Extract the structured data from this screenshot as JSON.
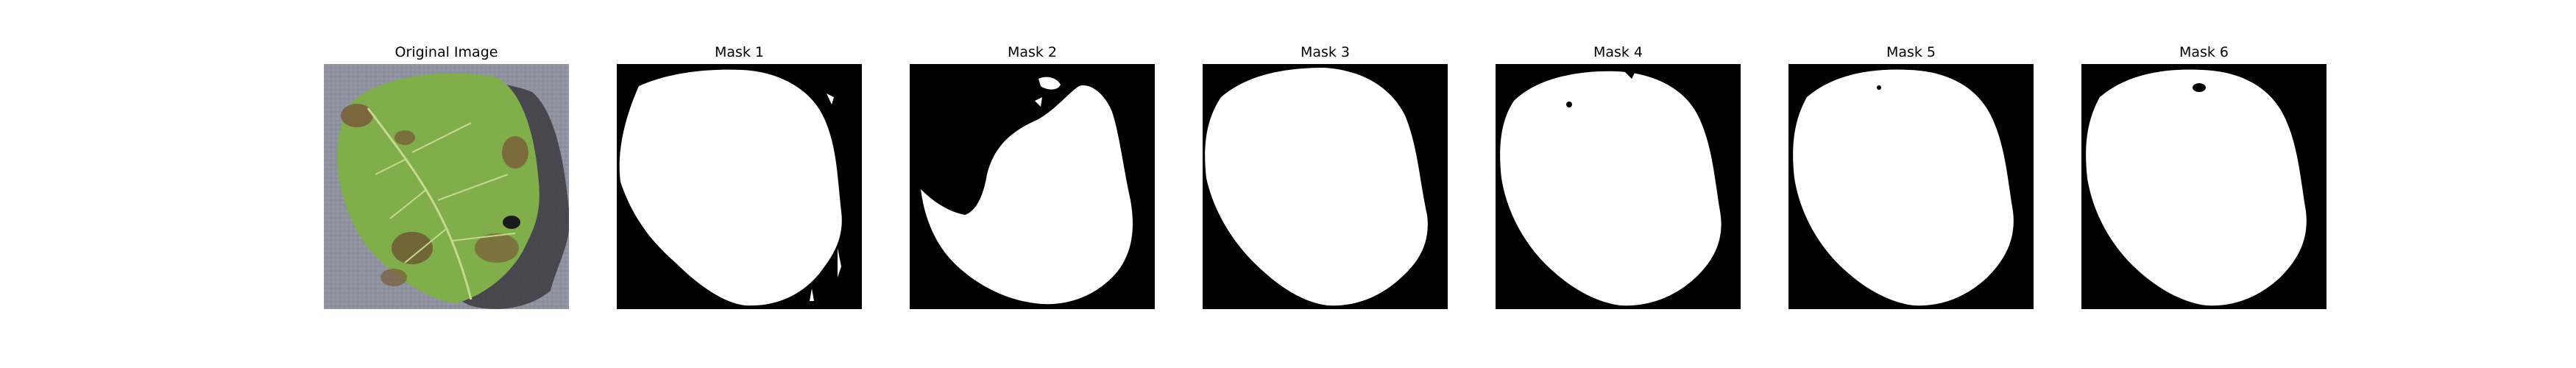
{
  "figure": {
    "panels": [
      {
        "title": "Original Image",
        "kind": "photo",
        "icon": "leaf-photo"
      },
      {
        "title": "Mask 1",
        "kind": "mask",
        "icon": "leaf-mask"
      },
      {
        "title": "Mask 2",
        "kind": "mask",
        "icon": "leaf-mask"
      },
      {
        "title": "Mask 3",
        "kind": "mask",
        "icon": "leaf-mask"
      },
      {
        "title": "Mask 4",
        "kind": "mask",
        "icon": "leaf-mask"
      },
      {
        "title": "Mask 5",
        "kind": "mask",
        "icon": "leaf-mask"
      },
      {
        "title": "Mask 6",
        "kind": "mask",
        "icon": "leaf-mask"
      }
    ],
    "colors": {
      "mask_foreground": "#ffffff",
      "mask_background": "#000000",
      "leaf_green": "#7fae4a",
      "leaf_blight": "#7a5a3a",
      "ground_gray": "#8f93a0"
    }
  }
}
